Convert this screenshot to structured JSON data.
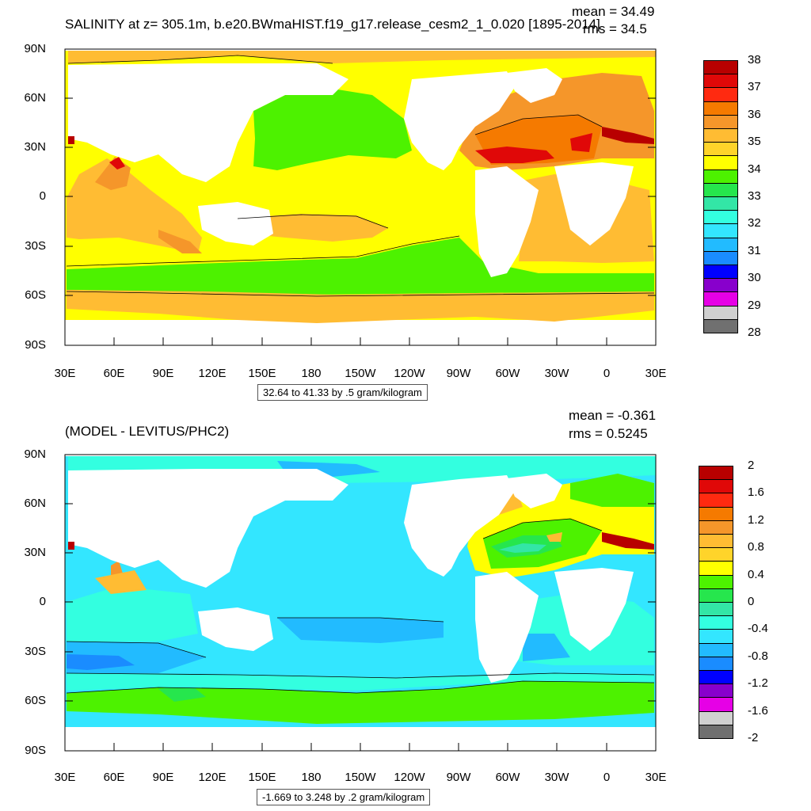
{
  "panel1": {
    "title": "SALINITY at z= 305.1m, b.e20.BWmaHIST.f19_g17.release_cesm2_1_0.020 [1895-2014]",
    "mean_text": "mean = 34.49",
    "rms_text": "rms = 34.5",
    "info_text": "32.64 to 41.33 by .5 gram/kilogram",
    "colorbar_labels": [
      "38",
      "37",
      "36",
      "35",
      "34",
      "33",
      "32",
      "31",
      "30",
      "29",
      "28"
    ],
    "colorbar_colors": [
      "#b80000",
      "#e00808",
      "#ff2a10",
      "#f57a00",
      "#f5962a",
      "#ffbc33",
      "#ffd42a",
      "#ffff00",
      "#4df200",
      "#26e64d",
      "#33e6a6",
      "#33ffe0",
      "#33e6ff",
      "#22bbff",
      "#1a8cff",
      "#0000ff",
      "#8800cc",
      "#e600e6",
      "#d0d0d0",
      "#707070"
    ]
  },
  "panel2": {
    "title": "(MODEL - LEVITUS/PHC2)",
    "mean_text": "mean = -0.361",
    "rms_text": "rms = 0.5245",
    "info_text": "-1.669 to 3.248 by .2 gram/kilogram",
    "colorbar_labels": [
      "2",
      "1.6",
      "1.2",
      "0.8",
      "0.4",
      "0",
      "-0.4",
      "-0.8",
      "-1.2",
      "-1.6",
      "-2"
    ],
    "colorbar_colors": [
      "#b80000",
      "#e00808",
      "#ff2a10",
      "#f57a00",
      "#f5962a",
      "#ffbc33",
      "#ffd42a",
      "#ffff00",
      "#4df200",
      "#26e64d",
      "#33e6a6",
      "#33ffe0",
      "#33e6ff",
      "#22bbff",
      "#1a8cff",
      "#0000ff",
      "#8800cc",
      "#e600e6",
      "#d0d0d0",
      "#707070"
    ]
  },
  "axes": {
    "lat_labels": [
      "90N",
      "60N",
      "30N",
      "0",
      "30S",
      "60S",
      "90S"
    ],
    "lon_labels": [
      "30E",
      "60E",
      "90E",
      "120E",
      "150E",
      "180",
      "150W",
      "120W",
      "90W",
      "60W",
      "30W",
      "0",
      "30E"
    ]
  }
}
